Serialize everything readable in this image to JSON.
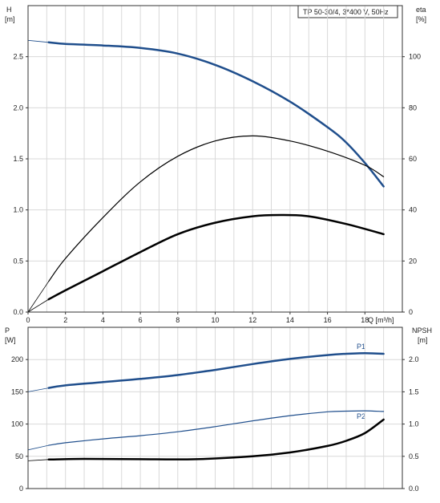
{
  "chart_data": [
    {
      "type": "line",
      "title": "TP 50-30/4, 3*400 V, 50Hz",
      "xlabel": "Q [m³/h]",
      "xlim": [
        0,
        20
      ],
      "xticks": [
        0,
        2,
        4,
        6,
        8,
        10,
        12,
        14,
        16,
        18
      ],
      "ylabel_left": {
        "name": "H",
        "unit": "[m]"
      },
      "ylim_left": [
        0,
        3.0
      ],
      "yticks_left": [
        "0.0",
        "0.5",
        "1.0",
        "1.5",
        "2.0",
        "2.5"
      ],
      "ylabel_right": {
        "name": "eta",
        "unit": "[%]"
      },
      "ylim_right": [
        0,
        120
      ],
      "yticks_right": [
        "0",
        "20",
        "40",
        "60",
        "80",
        "100"
      ],
      "grid": true,
      "series": [
        {
          "axis": "left",
          "color": "#1f4e8c",
          "width": 2.5,
          "extension": [
            [
              0,
              2.66
            ],
            [
              1.1,
              2.64
            ]
          ],
          "points": [
            [
              1.1,
              2.64
            ],
            [
              2,
              2.625
            ],
            [
              4,
              2.61
            ],
            [
              6,
              2.585
            ],
            [
              8,
              2.53
            ],
            [
              10,
              2.42
            ],
            [
              12,
              2.26
            ],
            [
              14,
              2.06
            ],
            [
              16,
              1.81
            ],
            [
              17,
              1.66
            ],
            [
              18,
              1.46
            ],
            [
              19,
              1.23
            ]
          ]
        },
        {
          "axis": "right",
          "color": "#000000",
          "width": 1.2,
          "extension": [
            [
              0,
              0
            ],
            [
              1.1,
              12
            ]
          ],
          "points": [
            [
              1.1,
              12
            ],
            [
              2,
              21
            ],
            [
              4,
              37
            ],
            [
              6,
              51
            ],
            [
              8,
              61
            ],
            [
              10,
              67
            ],
            [
              12,
              69
            ],
            [
              14,
              67
            ],
            [
              16,
              63
            ],
            [
              18,
              57.5
            ],
            [
              19,
              53
            ]
          ]
        },
        {
          "axis": "right",
          "color": "#000000",
          "width": 2.5,
          "extension": [
            [
              0,
              0
            ],
            [
              1.1,
              5
            ]
          ],
          "points": [
            [
              1.1,
              5
            ],
            [
              2,
              8.5
            ],
            [
              4,
              16
            ],
            [
              6,
              23.5
            ],
            [
              8,
              30.5
            ],
            [
              10,
              35
            ],
            [
              12,
              37.5
            ],
            [
              13.5,
              38
            ],
            [
              15,
              37.5
            ],
            [
              17,
              34.5
            ],
            [
              19,
              30.5
            ]
          ]
        }
      ]
    },
    {
      "type": "line",
      "xlim": [
        0,
        20
      ],
      "ylabel_left": {
        "name": "P",
        "unit": "[W]"
      },
      "ylim_left": [
        0,
        250
      ],
      "yticks_left": [
        "0",
        "50",
        "100",
        "150",
        "200"
      ],
      "ylabel_right": {
        "name": "NPSH",
        "unit": "[m]"
      },
      "ylim_right": [
        0,
        2.5
      ],
      "yticks_right": [
        "0.0",
        "0.5",
        "1.0",
        "1.5",
        "2.0"
      ],
      "grid": true,
      "series": [
        {
          "name": "P1",
          "axis": "left",
          "color": "#1f4e8c",
          "width": 2.5,
          "extension": [
            [
              0,
              150
            ],
            [
              1.1,
              156
            ]
          ],
          "points": [
            [
              1.1,
              156
            ],
            [
              2,
              160
            ],
            [
              4,
              165
            ],
            [
              6,
              170
            ],
            [
              8,
              176
            ],
            [
              10,
              184
            ],
            [
              12,
              193
            ],
            [
              14,
              201
            ],
            [
              16,
              207
            ],
            [
              17,
              209
            ],
            [
              18,
              210
            ],
            [
              19,
              209
            ]
          ]
        },
        {
          "name": "P2",
          "axis": "left",
          "color": "#1f4e8c",
          "width": 1.2,
          "extension": [
            [
              0,
              60
            ],
            [
              1.1,
              67
            ]
          ],
          "points": [
            [
              1.1,
              67
            ],
            [
              2,
              71
            ],
            [
              4,
              77
            ],
            [
              6,
              82
            ],
            [
              8,
              88
            ],
            [
              10,
              96
            ],
            [
              12,
              105
            ],
            [
              14,
              113
            ],
            [
              16,
              119
            ],
            [
              17,
              120
            ],
            [
              18,
              120.5
            ],
            [
              19,
              119.5
            ]
          ]
        },
        {
          "axis": "left",
          "color": "#000000",
          "width": 2.5,
          "extension": [
            [
              0,
              43
            ],
            [
              1.1,
              45
            ]
          ],
          "points": [
            [
              1.1,
              45
            ],
            [
              3,
              46
            ],
            [
              6,
              45.5
            ],
            [
              9,
              45.5
            ],
            [
              12,
              50
            ],
            [
              14,
              56
            ],
            [
              16,
              66
            ],
            [
              17,
              74
            ],
            [
              18,
              86
            ],
            [
              19,
              107
            ]
          ]
        }
      ]
    }
  ]
}
